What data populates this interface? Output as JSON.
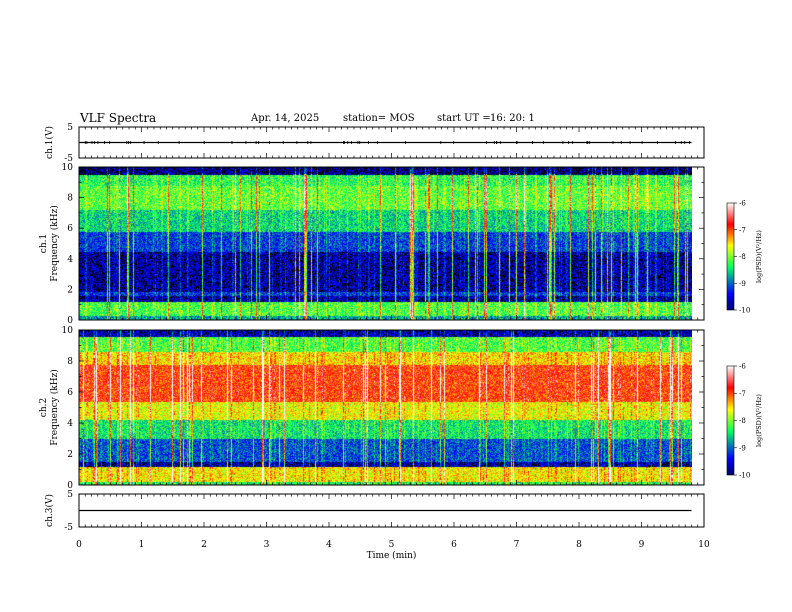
{
  "header": {
    "title": "VLF Spectra",
    "date": "Apr. 14, 2025",
    "station_label": "station= MOS",
    "start_label": "start UT =",
    "start_time": "16: 20: 1"
  },
  "chart_data": [
    {
      "type": "line",
      "panel": "ch1-waveform",
      "ylabel": "ch.1(V)",
      "yticks": [
        "5",
        "-5"
      ],
      "ylim": [
        -5,
        5
      ],
      "series": [
        {
          "values": [
            0,
            0
          ]
        }
      ],
      "x": [
        0,
        9.8
      ]
    },
    {
      "type": "heatmap",
      "panel": "ch1-spectrogram",
      "ylabel_top": "ch.1",
      "ylabel": "Frequency (kHz)",
      "yticks": [
        "0",
        "2",
        "4",
        "6",
        "8",
        "10"
      ],
      "ylim": [
        0,
        10
      ],
      "xlim": [
        0,
        9.8
      ],
      "colorbar": {
        "label": "log(PSD)(V²/Hz)",
        "ticks": [
          "-6",
          "-7",
          "-8",
          "-9",
          "-10"
        ],
        "range": [
          -10,
          -6
        ]
      }
    },
    {
      "type": "heatmap",
      "panel": "ch2-spectrogram",
      "ylabel_top": "ch.2",
      "ylabel": "Frequency (kHz)",
      "yticks": [
        "0",
        "2",
        "4",
        "6",
        "8",
        "10"
      ],
      "ylim": [
        0,
        10
      ],
      "xlim": [
        0,
        9.8
      ],
      "colorbar": {
        "label": "log(PSD)(V²/Hz)",
        "ticks": [
          "-6",
          "-7",
          "-8",
          "-9",
          "-10"
        ],
        "range": [
          -10,
          -6
        ]
      }
    },
    {
      "type": "line",
      "panel": "ch3-waveform",
      "ylabel": "ch.3(V)",
      "yticks": [
        "5",
        "-5"
      ],
      "ylim": [
        -5,
        5
      ],
      "series": [
        {
          "values": [
            0,
            0
          ]
        }
      ],
      "x": [
        0,
        9.8
      ]
    }
  ],
  "xaxis": {
    "label": "Time (min)",
    "ticks": [
      "0",
      "1",
      "2",
      "3",
      "4",
      "5",
      "6",
      "7",
      "8",
      "9",
      "10"
    ],
    "xlim": [
      0,
      10
    ]
  },
  "colors": {
    "colormap": [
      "#00006a",
      "#0000ff",
      "#00ff60",
      "#ffff00",
      "#ff0000",
      "#ffffff"
    ]
  }
}
